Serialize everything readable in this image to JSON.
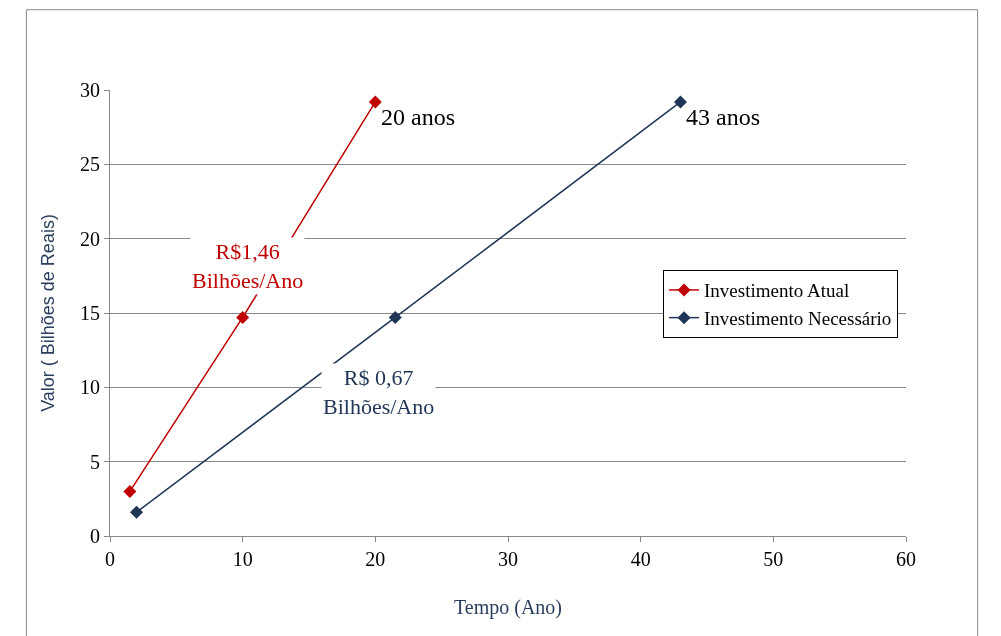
{
  "chart_data": {
    "type": "line",
    "xlabel": "Tempo (Ano)",
    "ylabel": "Valor ( Bilhões de Reais)",
    "series": [
      {
        "name": "Investimento Atual",
        "color": "#c00000",
        "x": [
          1.5,
          10,
          20
        ],
        "values": [
          3,
          14.7,
          29.2
        ]
      },
      {
        "name": "Investimento Necessário",
        "color": "#1f3556",
        "x": [
          2,
          21.5,
          43
        ],
        "values": [
          1.6,
          14.7,
          29.2
        ]
      }
    ],
    "annotations": [
      {
        "text": "20 anos",
        "x": 20,
        "y": 29.2
      },
      {
        "text": "43 anos",
        "x": 43,
        "y": 29.2
      },
      "R$1,46\nBilhões/Ano",
      "R$ 0,67\nBilhões/Ano"
    ],
    "xlim": [
      0,
      60
    ],
    "xticks": [
      0,
      10,
      20,
      30,
      40,
      50,
      60
    ],
    "ylim": [
      0,
      30
    ],
    "yticks": [
      0,
      5,
      10,
      15,
      20,
      25,
      30
    ],
    "grid": "y",
    "legend": "right",
    "marker": "diamond",
    "line_style": "solid"
  }
}
